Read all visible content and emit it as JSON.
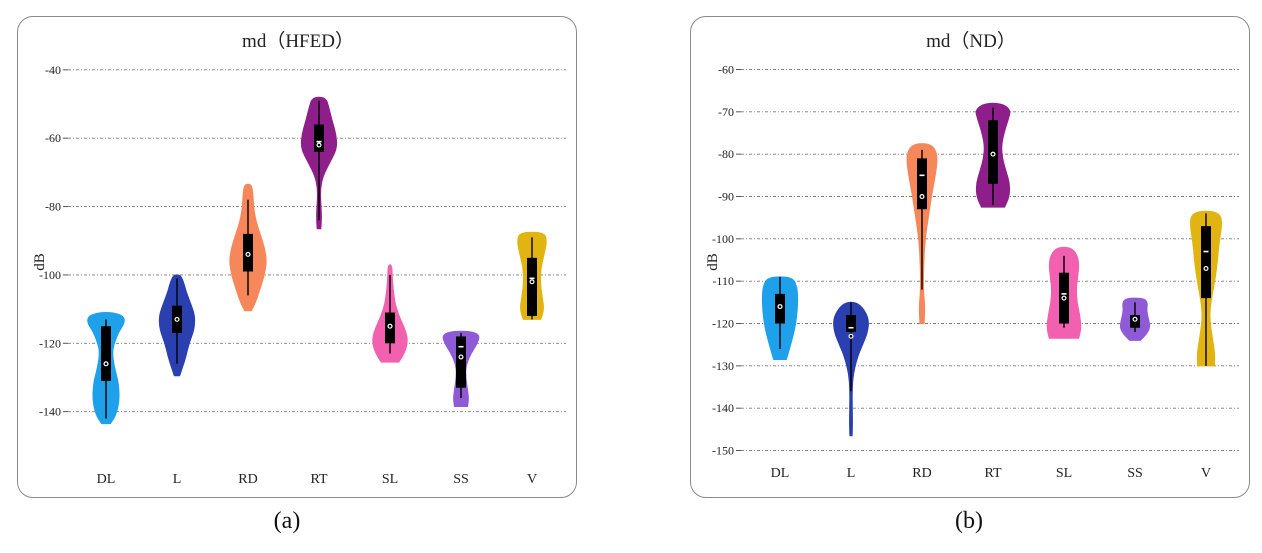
{
  "chart_data": [
    {
      "type": "violin",
      "title": "md（HFED）",
      "ylabel": "dB",
      "xlabel": "",
      "ylim": [
        -148,
        -38
      ],
      "yticks": [
        -40,
        -60,
        -80,
        -100,
        -120,
        -140
      ],
      "grid": true,
      "categories": [
        "DL",
        "L",
        "RD",
        "RT",
        "SL",
        "SS",
        "V"
      ],
      "series": [
        {
          "category": "DL",
          "color": "#1ea0ea",
          "min": -142,
          "q1": -131,
          "median": -126,
          "mean": -126,
          "q3": -115,
          "max": -113,
          "profile": [
            [
              -143.5,
              0.2
            ],
            [
              -141,
              0.45
            ],
            [
              -137,
              0.6
            ],
            [
              -132,
              0.58
            ],
            [
              -128,
              0.42
            ],
            [
              -124,
              0.3
            ],
            [
              -121,
              0.32
            ],
            [
              -117,
              0.55
            ],
            [
              -114,
              0.85
            ],
            [
              -112,
              0.8
            ],
            [
              -111,
              0.3
            ]
          ]
        },
        {
          "category": "L",
          "color": "#2a3fb0",
          "min": -126,
          "q1": -117,
          "median": -113,
          "mean": -113,
          "q3": -109,
          "max": -101,
          "profile": [
            [
              -129.5,
              0.12
            ],
            [
              -127,
              0.25
            ],
            [
              -124,
              0.4
            ],
            [
              -120,
              0.55
            ],
            [
              -116,
              0.78
            ],
            [
              -112,
              0.82
            ],
            [
              -108,
              0.6
            ],
            [
              -105,
              0.42
            ],
            [
              -102,
              0.3
            ],
            [
              -100,
              0.15
            ]
          ]
        },
        {
          "category": "RD",
          "color": "#f5875a",
          "min": -106,
          "q1": -99,
          "median": -94,
          "mean": -94,
          "q3": -88,
          "max": -78,
          "profile": [
            [
              -110.5,
              0.15
            ],
            [
              -108,
              0.35
            ],
            [
              -104,
              0.55
            ],
            [
              -100,
              0.75
            ],
            [
              -96,
              0.85
            ],
            [
              -92,
              0.75
            ],
            [
              -88,
              0.55
            ],
            [
              -84,
              0.35
            ],
            [
              -80,
              0.25
            ],
            [
              -76,
              0.22
            ],
            [
              -73.5,
              0.15
            ]
          ]
        },
        {
          "category": "RT",
          "color": "#8e1f8a",
          "min": -84,
          "q1": -64,
          "median": -61,
          "mean": -62,
          "q3": -56,
          "max": -49,
          "profile": [
            [
              -86.5,
              0.08
            ],
            [
              -83,
              0.12
            ],
            [
              -79,
              0.08
            ],
            [
              -75,
              0.06
            ],
            [
              -71,
              0.18
            ],
            [
              -67,
              0.5
            ],
            [
              -63,
              0.82
            ],
            [
              -59,
              0.78
            ],
            [
              -55,
              0.6
            ],
            [
              -51,
              0.45
            ],
            [
              -48,
              0.3
            ]
          ]
        },
        {
          "category": "SL",
          "color": "#f261b0",
          "min": -123,
          "q1": -120,
          "median": -115,
          "mean": -115,
          "q3": -111,
          "max": -100,
          "profile": [
            [
              -125.5,
              0.4
            ],
            [
              -123,
              0.65
            ],
            [
              -120,
              0.8
            ],
            [
              -117,
              0.75
            ],
            [
              -114,
              0.55
            ],
            [
              -111,
              0.35
            ],
            [
              -108,
              0.22
            ],
            [
              -104,
              0.14
            ],
            [
              -100,
              0.1
            ],
            [
              -97,
              0.08
            ]
          ]
        },
        {
          "category": "SS",
          "color": "#8e5ad6",
          "min": -136,
          "q1": -133,
          "median": -121,
          "mean": -124,
          "q3": -118,
          "max": -117,
          "profile": [
            [
              -138.5,
              0.3
            ],
            [
              -136,
              0.35
            ],
            [
              -133,
              0.28
            ],
            [
              -129,
              0.2
            ],
            [
              -126,
              0.25
            ],
            [
              -123,
              0.45
            ],
            [
              -120,
              0.75
            ],
            [
              -117.5,
              0.85
            ],
            [
              -116.5,
              0.4
            ]
          ]
        },
        {
          "category": "V",
          "color": "#e2b412",
          "min": -113,
          "q1": -112,
          "median": -101,
          "mean": -102,
          "q3": -95,
          "max": -89,
          "profile": [
            [
              -113,
              0.4
            ],
            [
              -110,
              0.55
            ],
            [
              -106,
              0.45
            ],
            [
              -102,
              0.38
            ],
            [
              -98,
              0.4
            ],
            [
              -94,
              0.55
            ],
            [
              -90,
              0.68
            ],
            [
              -87.5,
              0.55
            ]
          ]
        }
      ]
    },
    {
      "type": "violin",
      "title": "md（ND）",
      "ylabel": "dB",
      "xlabel": "",
      "ylim": [
        -152,
        -58
      ],
      "yticks": [
        -60,
        -70,
        -80,
        -90,
        -100,
        -110,
        -120,
        -130,
        -140,
        -150
      ],
      "grid": true,
      "categories": [
        "DL",
        "L",
        "RD",
        "RT",
        "SL",
        "SS",
        "V"
      ],
      "series": [
        {
          "category": "DL",
          "color": "#1ea0ea",
          "min": -126,
          "q1": -120,
          "median": -116,
          "mean": -116,
          "q3": -113,
          "max": -109,
          "profile": [
            [
              -128.5,
              0.3
            ],
            [
              -126,
              0.45
            ],
            [
              -123,
              0.62
            ],
            [
              -120,
              0.75
            ],
            [
              -117,
              0.82
            ],
            [
              -114,
              0.85
            ],
            [
              -111,
              0.8
            ],
            [
              -109,
              0.55
            ]
          ]
        },
        {
          "category": "L",
          "color": "#2a3fb0",
          "min": -136,
          "q1": -122,
          "median": -121,
          "mean": -123,
          "q3": -118,
          "max": -115,
          "profile": [
            [
              -146.5,
              0.05
            ],
            [
              -144,
              0.07
            ],
            [
              -140,
              0.06
            ],
            [
              -136,
              0.05
            ],
            [
              -132,
              0.1
            ],
            [
              -128,
              0.3
            ],
            [
              -125,
              0.55
            ],
            [
              -122,
              0.8
            ],
            [
              -119,
              0.85
            ],
            [
              -116.5,
              0.6
            ],
            [
              -115,
              0.25
            ]
          ]
        },
        {
          "category": "RD",
          "color": "#f5875a",
          "min": -112,
          "q1": -93,
          "median": -85,
          "mean": -90,
          "q3": -81,
          "max": -79,
          "profile": [
            [
              -120,
              0.1
            ],
            [
              -116,
              0.14
            ],
            [
              -112,
              0.06
            ],
            [
              -106,
              0.08
            ],
            [
              -100,
              0.15
            ],
            [
              -95,
              0.3
            ],
            [
              -90,
              0.45
            ],
            [
              -86,
              0.6
            ],
            [
              -82,
              0.72
            ],
            [
              -79.5,
              0.7
            ],
            [
              -77.5,
              0.4
            ]
          ]
        },
        {
          "category": "RT",
          "color": "#8e1f8a",
          "min": -92,
          "q1": -87,
          "median": -80,
          "mean": -80,
          "q3": -72,
          "max": -69,
          "profile": [
            [
              -92.5,
              0.55
            ],
            [
              -90,
              0.78
            ],
            [
              -87,
              0.8
            ],
            [
              -84,
              0.62
            ],
            [
              -81,
              0.45
            ],
            [
              -78,
              0.4
            ],
            [
              -75,
              0.52
            ],
            [
              -72,
              0.72
            ],
            [
              -69.5,
              0.85
            ],
            [
              -68,
              0.4
            ]
          ]
        },
        {
          "category": "SL",
          "color": "#f261b0",
          "min": -121,
          "q1": -120,
          "median": -113,
          "mean": -114,
          "q3": -108,
          "max": -104,
          "profile": [
            [
              -123.5,
              0.7
            ],
            [
              -121,
              0.82
            ],
            [
              -118,
              0.75
            ],
            [
              -115,
              0.62
            ],
            [
              -112,
              0.58
            ],
            [
              -109,
              0.65
            ],
            [
              -106,
              0.72
            ],
            [
              -103.5,
              0.6
            ],
            [
              -102,
              0.3
            ]
          ]
        },
        {
          "category": "SS",
          "color": "#8e5ad6",
          "min": -122,
          "q1": -121,
          "median": -119,
          "mean": -119,
          "q3": -118,
          "max": -115,
          "profile": [
            [
              -124,
              0.25
            ],
            [
              -122.5,
              0.55
            ],
            [
              -121,
              0.72
            ],
            [
              -119,
              0.65
            ],
            [
              -117,
              0.55
            ],
            [
              -115,
              0.6
            ],
            [
              -114,
              0.4
            ]
          ]
        },
        {
          "category": "V",
          "color": "#e2b412",
          "min": -130,
          "q1": -114,
          "median": -103,
          "mean": -107,
          "q3": -97,
          "max": -94,
          "profile": [
            [
              -130,
              0.4
            ],
            [
              -127,
              0.42
            ],
            [
              -124,
              0.32
            ],
            [
              -120,
              0.2
            ],
            [
              -117,
              0.18
            ],
            [
              -113,
              0.3
            ],
            [
              -109,
              0.45
            ],
            [
              -105,
              0.55
            ],
            [
              -101,
              0.62
            ],
            [
              -97,
              0.75
            ],
            [
              -94.5,
              0.72
            ],
            [
              -93.5,
              0.35
            ]
          ]
        }
      ]
    }
  ],
  "sublabels": {
    "a": "(a)",
    "b": "(b)"
  }
}
